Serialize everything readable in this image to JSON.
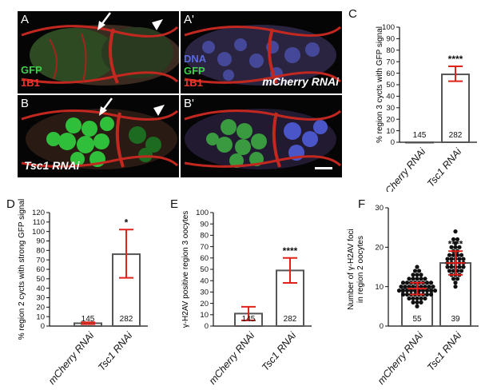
{
  "micrographs": {
    "A": {
      "letter": "A",
      "labels": [
        "GFP",
        "1B1"
      ],
      "rnai": "",
      "arrow": true,
      "arrowhead": true
    },
    "A_prime": {
      "letter": "A'",
      "labels": [
        "DNA",
        "GFP",
        "1B1"
      ],
      "rnai": "mCherry RNAi"
    },
    "B": {
      "letter": "B",
      "labels": [],
      "rnai": "Tsc1 RNAi",
      "arrow": true,
      "arrowhead": true
    },
    "B_prime": {
      "letter": "B'",
      "labels": [],
      "rnai": "",
      "scalebar": true
    }
  },
  "colors": {
    "bar_error": "#e0221b",
    "bar_edge": "#444444",
    "dot": "#111111",
    "gfp": "#2fbf3a",
    "red": "#e0261e",
    "dna": "#4a55c8"
  },
  "chart_data": [
    {
      "id": "C",
      "letter": "C",
      "type": "bar",
      "categories": [
        "mCherry RNAi",
        "Tsc1 RNAi"
      ],
      "values": [
        0,
        59
      ],
      "error_low": [
        0,
        53
      ],
      "error_high": [
        0,
        66
      ],
      "n_labels": [
        "145",
        "282"
      ],
      "significance": [
        "",
        "****"
      ],
      "ylabel": "% region 3 cycts with GFP signal",
      "ylim": [
        0,
        100
      ],
      "yticks": [
        0,
        10,
        20,
        30,
        40,
        50,
        60,
        70,
        80,
        90,
        100
      ]
    },
    {
      "id": "D",
      "letter": "D",
      "type": "bar",
      "categories": [
        "mCherry RNAi",
        "Tsc1 RNAi"
      ],
      "values": [
        3,
        76
      ],
      "error_low": [
        2,
        51
      ],
      "error_high": [
        4,
        102
      ],
      "n_labels": [
        "145",
        "282"
      ],
      "significance": [
        "",
        "*"
      ],
      "ylabel": "% region 2 cycts with strong GFP signal",
      "ylim": [
        0,
        120
      ],
      "yticks": [
        0,
        10,
        20,
        30,
        40,
        50,
        60,
        70,
        80,
        90,
        100,
        110,
        120
      ]
    },
    {
      "id": "E",
      "letter": "E",
      "type": "bar",
      "categories": [
        "mCherry RNAi",
        "Tsc1 RNAi"
      ],
      "values": [
        11,
        49
      ],
      "error_low": [
        5,
        38
      ],
      "error_high": [
        17,
        60
      ],
      "n_labels": [
        "145",
        "282"
      ],
      "significance": [
        "",
        "****"
      ],
      "ylabel": "γ-H2AV positive region 3 oocytes",
      "ylim": [
        0,
        100
      ],
      "yticks": [
        0,
        10,
        20,
        30,
        40,
        50,
        60,
        70,
        80,
        90,
        100
      ]
    },
    {
      "id": "F",
      "letter": "F",
      "type": "scatter",
      "categories": [
        "mCherry RNAi",
        "Tsc1 RNAi"
      ],
      "values": [
        9.5,
        16
      ],
      "error_low": [
        8,
        13
      ],
      "error_high": [
        11,
        19
      ],
      "n_labels": [
        "55",
        "39"
      ],
      "significance": [
        "",
        "****"
      ],
      "ylabel": "Number of γ-H2AV foci in region 2 oocytes",
      "ylim": [
        0,
        30
      ],
      "yticks": [
        0,
        10,
        20,
        30
      ],
      "points": [
        [
          5,
          6,
          6,
          6,
          7,
          7,
          7,
          7,
          7,
          8,
          8,
          8,
          8,
          8,
          8,
          8,
          8,
          9,
          9,
          9,
          9,
          9,
          9,
          9,
          9,
          9,
          9,
          10,
          10,
          10,
          10,
          10,
          10,
          10,
          10,
          10,
          11,
          11,
          11,
          11,
          11,
          11,
          11,
          11,
          12,
          12,
          12,
          12,
          12,
          13,
          13,
          13,
          14,
          14,
          15
        ],
        [
          10,
          11,
          12,
          12,
          13,
          13,
          13,
          14,
          14,
          14,
          14,
          15,
          15,
          15,
          15,
          15,
          16,
          16,
          16,
          16,
          16,
          17,
          17,
          17,
          17,
          17,
          18,
          18,
          18,
          18,
          19,
          19,
          20,
          20,
          20,
          21,
          22,
          22,
          24
        ]
      ]
    }
  ]
}
